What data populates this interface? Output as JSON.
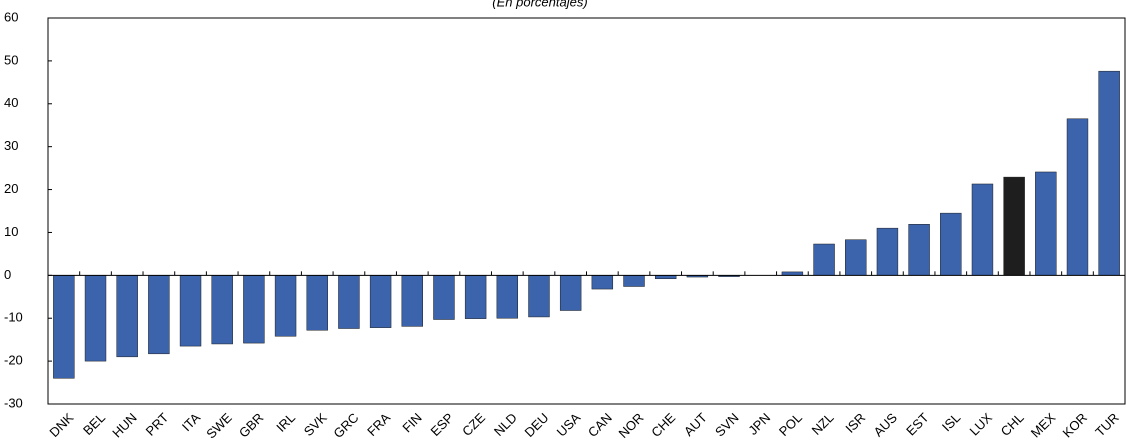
{
  "chart_data": {
    "type": "bar",
    "subtitle": "(En porcentajes)",
    "categories": [
      "DNK",
      "BEL",
      "HUN",
      "PRT",
      "ITA",
      "SWE",
      "GBR",
      "IRL",
      "SVK",
      "GRC",
      "FRA",
      "FIN",
      "ESP",
      "CZE",
      "NLD",
      "DEU",
      "USA",
      "CAN",
      "NOR",
      "CHE",
      "AUT",
      "SVN",
      "JPN",
      "POL",
      "NZL",
      "ISR",
      "AUS",
      "EST",
      "ISL",
      "LUX",
      "CHL",
      "MEX",
      "KOR",
      "TUR"
    ],
    "values": [
      -24,
      -20,
      -19,
      -18.3,
      -16.5,
      -16,
      -15.8,
      -14.2,
      -12.8,
      -12.4,
      -12.2,
      -11.9,
      -10.3,
      -10.1,
      -10,
      -9.7,
      -8.2,
      -3.2,
      -2.6,
      -0.8,
      -0.4,
      -0.3,
      0,
      0.8,
      7.3,
      8.3,
      11,
      11.9,
      14.5,
      21.3,
      22.9,
      24.1,
      36.5,
      47.6
    ],
    "colors": [
      "#3c64ad",
      "#3c64ad",
      "#3c64ad",
      "#3c64ad",
      "#3c64ad",
      "#3c64ad",
      "#3c64ad",
      "#3c64ad",
      "#3c64ad",
      "#3c64ad",
      "#3c64ad",
      "#3c64ad",
      "#3c64ad",
      "#3c64ad",
      "#3c64ad",
      "#3c64ad",
      "#3c64ad",
      "#3c64ad",
      "#3c64ad",
      "#3c64ad",
      "#3c64ad",
      "#3c64ad",
      "#3c64ad",
      "#3c64ad",
      "#3c64ad",
      "#3c64ad",
      "#3c64ad",
      "#3c64ad",
      "#3c64ad",
      "#3c64ad",
      "#1e1e1e",
      "#3c64ad",
      "#3c64ad",
      "#3c64ad"
    ],
    "ylim": [
      -30,
      60
    ],
    "yticks": [
      -30,
      -20,
      -10,
      0,
      10,
      20,
      30,
      40,
      50,
      60
    ]
  }
}
